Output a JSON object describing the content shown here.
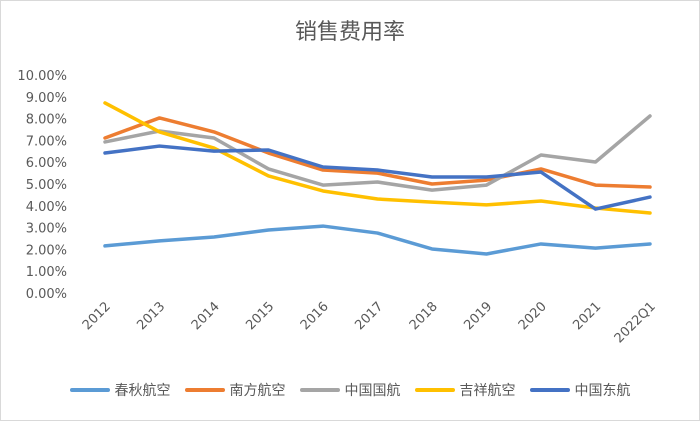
{
  "chart_data": {
    "type": "line",
    "title": "销售费用率",
    "categories": [
      "2012",
      "2013",
      "2014",
      "2015",
      "2016",
      "2017",
      "2018",
      "2019",
      "2020",
      "2021",
      "2022Q1"
    ],
    "ylim": [
      0,
      10
    ],
    "yticks": [
      "0.00%",
      "1.00%",
      "2.00%",
      "3.00%",
      "4.00%",
      "5.00%",
      "6.00%",
      "7.00%",
      "8.00%",
      "9.00%",
      "10.00%"
    ],
    "grid": false,
    "legend": "bottom",
    "series": [
      {
        "name": "春秋航空",
        "color": "#5B9BD5",
        "values": [
          2.16,
          2.39,
          2.57,
          2.89,
          3.07,
          2.75,
          2.02,
          1.79,
          2.25,
          2.06,
          2.25
        ]
      },
      {
        "name": "南方航空",
        "color": "#ED7D31",
        "values": [
          7.11,
          8.03,
          7.39,
          6.42,
          5.64,
          5.5,
          5.0,
          5.18,
          5.69,
          4.95,
          4.86
        ]
      },
      {
        "name": "中国国航",
        "color": "#A5A5A5",
        "values": [
          6.93,
          7.43,
          7.11,
          5.69,
          4.95,
          5.09,
          4.72,
          4.95,
          6.33,
          6.01,
          8.12
        ]
      },
      {
        "name": "吉祥航空",
        "color": "#FFC000",
        "values": [
          8.72,
          7.39,
          6.65,
          5.37,
          4.68,
          4.31,
          4.17,
          4.04,
          4.22,
          3.9,
          3.67
        ]
      },
      {
        "name": "中国东航",
        "color": "#4472C4",
        "values": [
          6.42,
          6.74,
          6.51,
          6.56,
          5.78,
          5.64,
          5.32,
          5.32,
          5.55,
          3.85,
          4.4
        ]
      }
    ]
  }
}
